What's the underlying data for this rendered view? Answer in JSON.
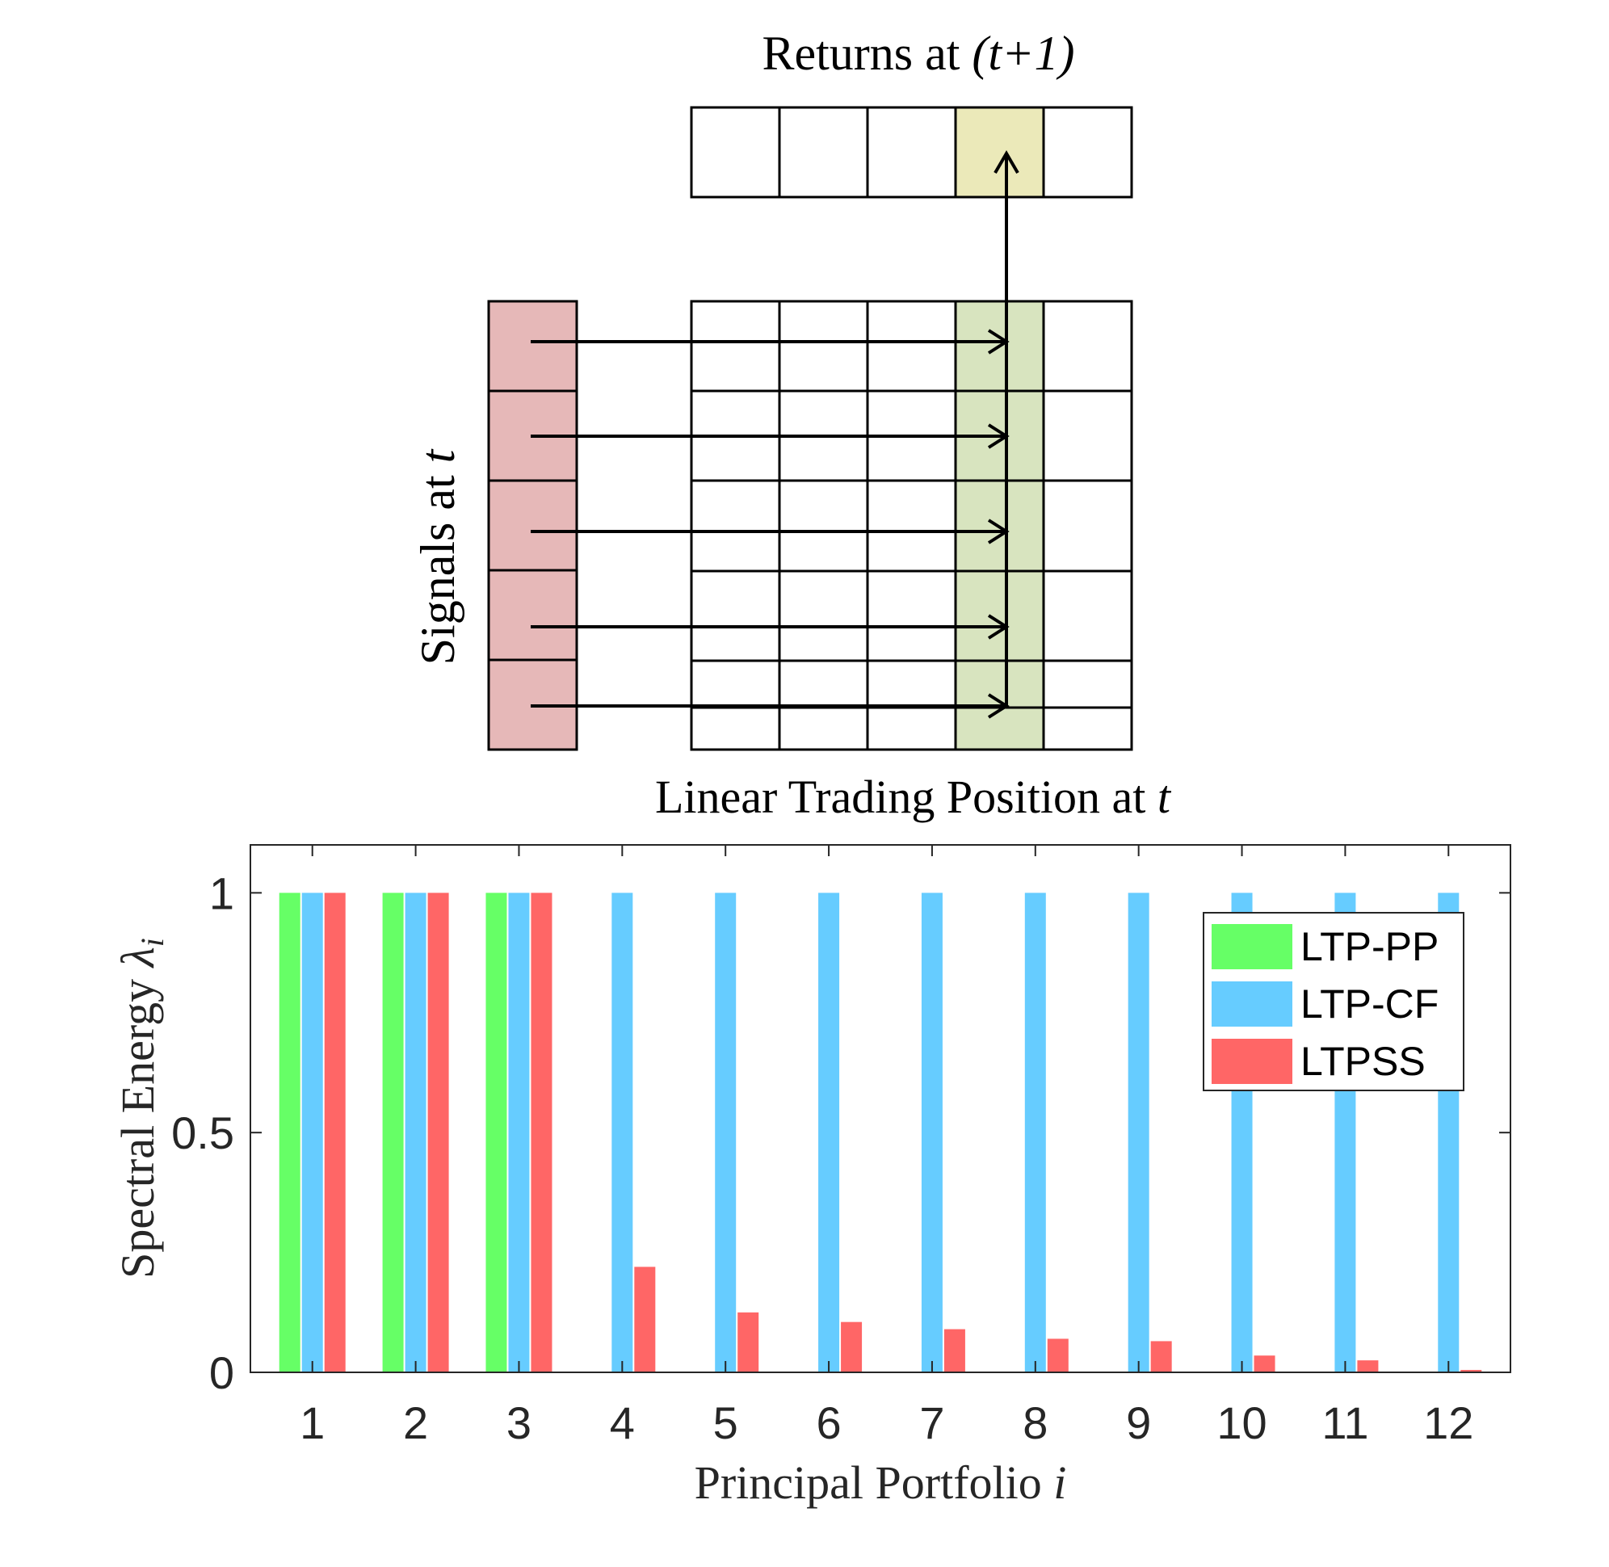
{
  "diagram": {
    "returns_label": {
      "text": "Returns at ",
      "italic": "(t+1)"
    },
    "signals_label": {
      "text": "Signals at ",
      "italic": "t"
    },
    "position_label": {
      "text": "Linear Trading Position at ",
      "italic": "t"
    },
    "colors": {
      "signal_fill": "#e6b8b8",
      "highlight_column": "#d8e4bf",
      "highlight_return": "#ebe9b9"
    }
  },
  "chart_data": {
    "type": "bar",
    "categories": [
      "1",
      "2",
      "3",
      "4",
      "5",
      "6",
      "7",
      "8",
      "9",
      "10",
      "11",
      "12"
    ],
    "series": [
      {
        "name": "LTP-PP",
        "color": "#66ff66",
        "values": [
          1,
          1,
          1,
          0,
          0,
          0,
          0,
          0,
          0,
          0,
          0,
          0
        ]
      },
      {
        "name": "LTP-CF",
        "color": "#66ccff",
        "values": [
          1,
          1,
          1,
          1,
          1,
          1,
          1,
          1,
          1,
          1,
          1,
          1
        ]
      },
      {
        "name": "LTPSS",
        "color": "#ff6666",
        "values": [
          1,
          1,
          1,
          0.22,
          0.125,
          0.105,
          0.09,
          0.07,
          0.065,
          0.035,
          0.025,
          0.005
        ]
      }
    ],
    "yticks": [
      "0",
      "0.5",
      "1"
    ],
    "ytick_values": [
      0,
      0.5,
      1
    ],
    "ylim": [
      0,
      1.1
    ],
    "xlabel": {
      "text": "Principal Portfolio ",
      "italic": "i"
    },
    "ylabel": {
      "text": "Spectral Energy ",
      "italic": "λ",
      "sub": "i"
    },
    "legend_position": "top-right",
    "grid": false
  }
}
